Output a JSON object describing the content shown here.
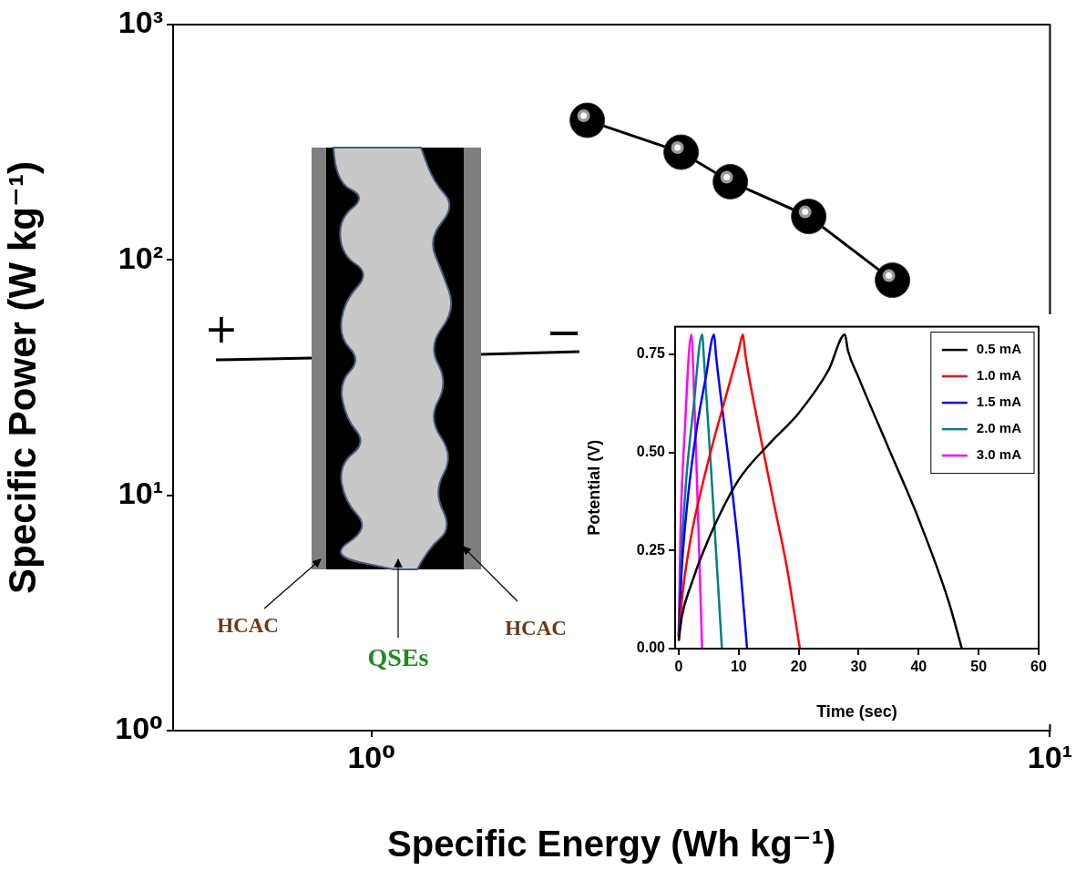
{
  "chart_data": [
    {
      "type": "scatter",
      "x_label": "Specific Energy (Wh kg⁻¹)",
      "y_label": "Specific Power (W kg⁻¹)",
      "log": true,
      "grid": false,
      "xlim": [
        0.51,
        10
      ],
      "xticks": [
        {
          "value": 1,
          "label": "10⁰"
        },
        {
          "value": 10,
          "label": "10¹"
        }
      ],
      "ylim": [
        1,
        1000
      ],
      "yticks": [
        {
          "value": 1,
          "label": "10⁰"
        },
        {
          "value": 10,
          "label": "10¹"
        },
        {
          "value": 100,
          "label": "10²"
        },
        {
          "value": 1000,
          "label": "10³"
        }
      ],
      "series": [
        {
          "color": "#000000",
          "marker": "circle",
          "line_style": "solid",
          "x": [
            2.08,
            2.86,
            3.38,
            4.41,
            5.86
          ],
          "values": [
            392,
            287,
            215,
            153,
            82
          ]
        }
      ]
    },
    {
      "type": "line",
      "x_label": "Time (sec)",
      "y_label": "Potential (V)",
      "grid": false,
      "legend": "upper right",
      "xlim": [
        -0.6,
        60
      ],
      "xticks": [
        0,
        10,
        20,
        30,
        40,
        50,
        60
      ],
      "ylim": [
        0,
        0.82
      ],
      "yticks": [
        {
          "value": 0,
          "label": "0.00"
        },
        {
          "value": 0.25,
          "label": "0.25"
        },
        {
          "value": 0.5,
          "label": "0.50"
        },
        {
          "value": 0.75,
          "label": "0.75"
        }
      ],
      "series": [
        {
          "name": "0.5 mA",
          "color": "#000000",
          "marker": "none",
          "line_style": "solid",
          "x": [
            0,
            0.5,
            2,
            5,
            10,
            15,
            20,
            25,
            27.7,
            28.2,
            30,
            35,
            40,
            45,
            47.2
          ],
          "values": [
            0.02,
            0.08,
            0.16,
            0.28,
            0.43,
            0.52,
            0.6,
            0.71,
            0.8,
            0.76,
            0.69,
            0.51,
            0.33,
            0.12,
            0.0
          ]
        },
        {
          "name": "1.0 mA",
          "color": "#ff0000",
          "marker": "none",
          "line_style": "solid",
          "x": [
            0,
            0.5,
            2,
            4,
            6,
            8,
            10,
            10.7,
            11.1,
            13,
            16,
            18,
            20.2
          ],
          "values": [
            0.02,
            0.12,
            0.28,
            0.42,
            0.54,
            0.65,
            0.76,
            0.8,
            0.75,
            0.59,
            0.36,
            0.21,
            0.0
          ]
        },
        {
          "name": "1.5 mA",
          "color": "#0000ff",
          "marker": "none",
          "line_style": "solid",
          "x": [
            0,
            0.5,
            1.5,
            3,
            4.5,
            5.9,
            6.2,
            8,
            10,
            11.4
          ],
          "values": [
            0.03,
            0.2,
            0.38,
            0.56,
            0.69,
            0.8,
            0.75,
            0.52,
            0.25,
            0.0
          ]
        },
        {
          "name": "2.0 mA",
          "color": "#008080",
          "marker": "none",
          "line_style": "solid",
          "x": [
            0,
            0.4,
            1.2,
            2.5,
            3.9,
            4.2,
            5.5,
            7.2
          ],
          "values": [
            0.03,
            0.22,
            0.42,
            0.62,
            0.8,
            0.74,
            0.43,
            0.0
          ]
        },
        {
          "name": "3.0 mA",
          "color": "#ff00ff",
          "marker": "none",
          "line_style": "solid",
          "x": [
            0,
            0.3,
            1,
            2.1,
            2.4,
            3.1,
            3.9
          ],
          "values": [
            0.03,
            0.3,
            0.55,
            0.8,
            0.72,
            0.4,
            0.0
          ]
        }
      ]
    }
  ],
  "diagram": {
    "positive": "+",
    "negative": "−",
    "left_label": "HCAC",
    "middle_label": "QSEs",
    "right_label": "HCAC"
  }
}
